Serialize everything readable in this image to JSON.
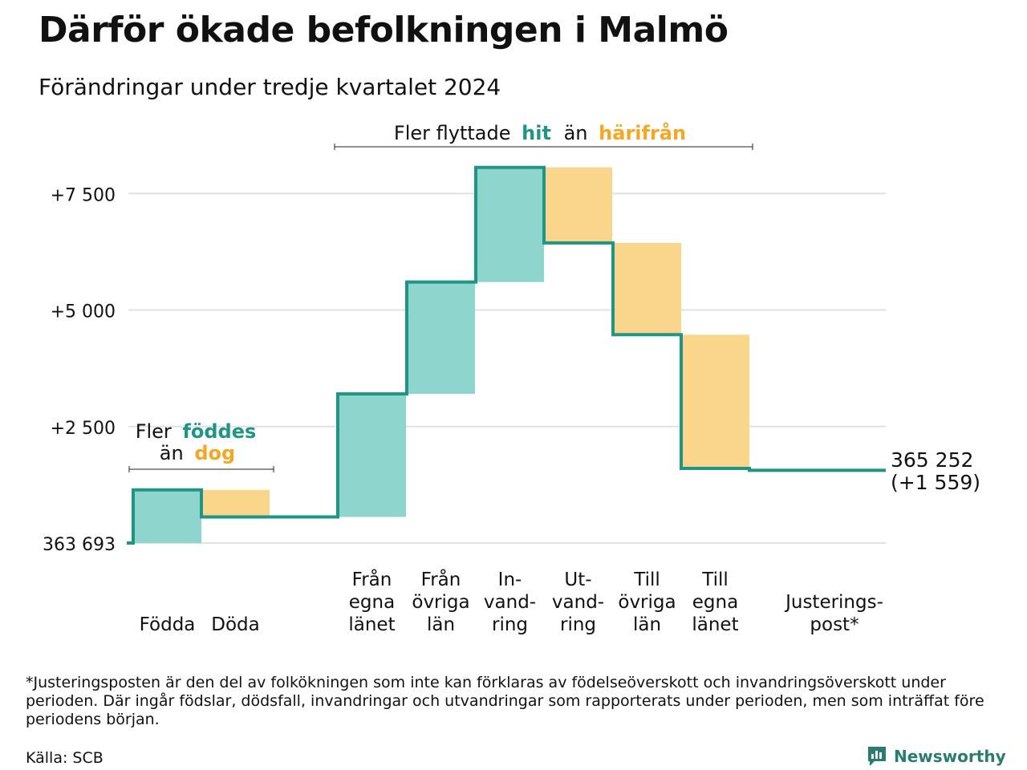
{
  "header": {
    "title": "Därför ökade befolkningen i Malmö",
    "subtitle": "Förändringar under tredje kvartalet 2024"
  },
  "colors": {
    "increase": "#8ed6cd",
    "decrease": "#fad58c",
    "step_line": "#1f9585",
    "hit_text": "#1f9585",
    "harifran_text": "#f5a623",
    "grid": "#e2e2e2",
    "brand": "#2a7d6e"
  },
  "annotations": {
    "top": {
      "prefix": "Fler flyttade",
      "hit": "hit",
      "middle": "än",
      "harifran": "härifrån"
    },
    "left": {
      "prefix": "Fler",
      "foddes": "föddes",
      "middle": "än",
      "dog": "dog"
    }
  },
  "end_label": {
    "value": "365 252",
    "change": "(+1 559)"
  },
  "chart_data": {
    "type": "waterfall",
    "baseline_value": 363693,
    "baseline_label": "363 693",
    "end_value": 365252,
    "end_change": 1559,
    "y_axis": {
      "ticks": [
        {
          "value": 2500,
          "label": "+2 500"
        },
        {
          "value": 5000,
          "label": "+5 000"
        },
        {
          "value": 7500,
          "label": "+7 500"
        }
      ],
      "range": [
        0,
        8300
      ]
    },
    "categories": [
      {
        "lines": [
          "Födda"
        ],
        "delta": 1140
      },
      {
        "lines": [
          "Döda"
        ],
        "delta": -580
      },
      {
        "lines": [
          "Från",
          "egna",
          "länet"
        ],
        "delta": 2640
      },
      {
        "lines": [
          "Från",
          "övriga",
          "län"
        ],
        "delta": 2400
      },
      {
        "lines": [
          "In-",
          "vand-",
          "ring"
        ],
        "delta": 2460
      },
      {
        "lines": [
          "Ut-",
          "vand-",
          "ring"
        ],
        "delta": -1620
      },
      {
        "lines": [
          "Till",
          "övriga",
          "län"
        ],
        "delta": -1970
      },
      {
        "lines": [
          "Till",
          "egna",
          "länet"
        ],
        "delta": -2870
      },
      {
        "lines": [
          "Justerings-",
          "post*"
        ],
        "delta": -41
      }
    ]
  },
  "footer": {
    "footnote": "*Justeringsposten är den del av folkökningen som inte kan förklaras av födelseöverskott och invandringsöverskott under perioden. Där ingår födslar, dödsfall, invandringar och utvandringar som rapporterats under perioden, men som inträffat före periodens början.",
    "source": "Källa: SCB",
    "brand": "Newsworthy",
    "brand_icon": "newsworthy-chart-icon"
  }
}
